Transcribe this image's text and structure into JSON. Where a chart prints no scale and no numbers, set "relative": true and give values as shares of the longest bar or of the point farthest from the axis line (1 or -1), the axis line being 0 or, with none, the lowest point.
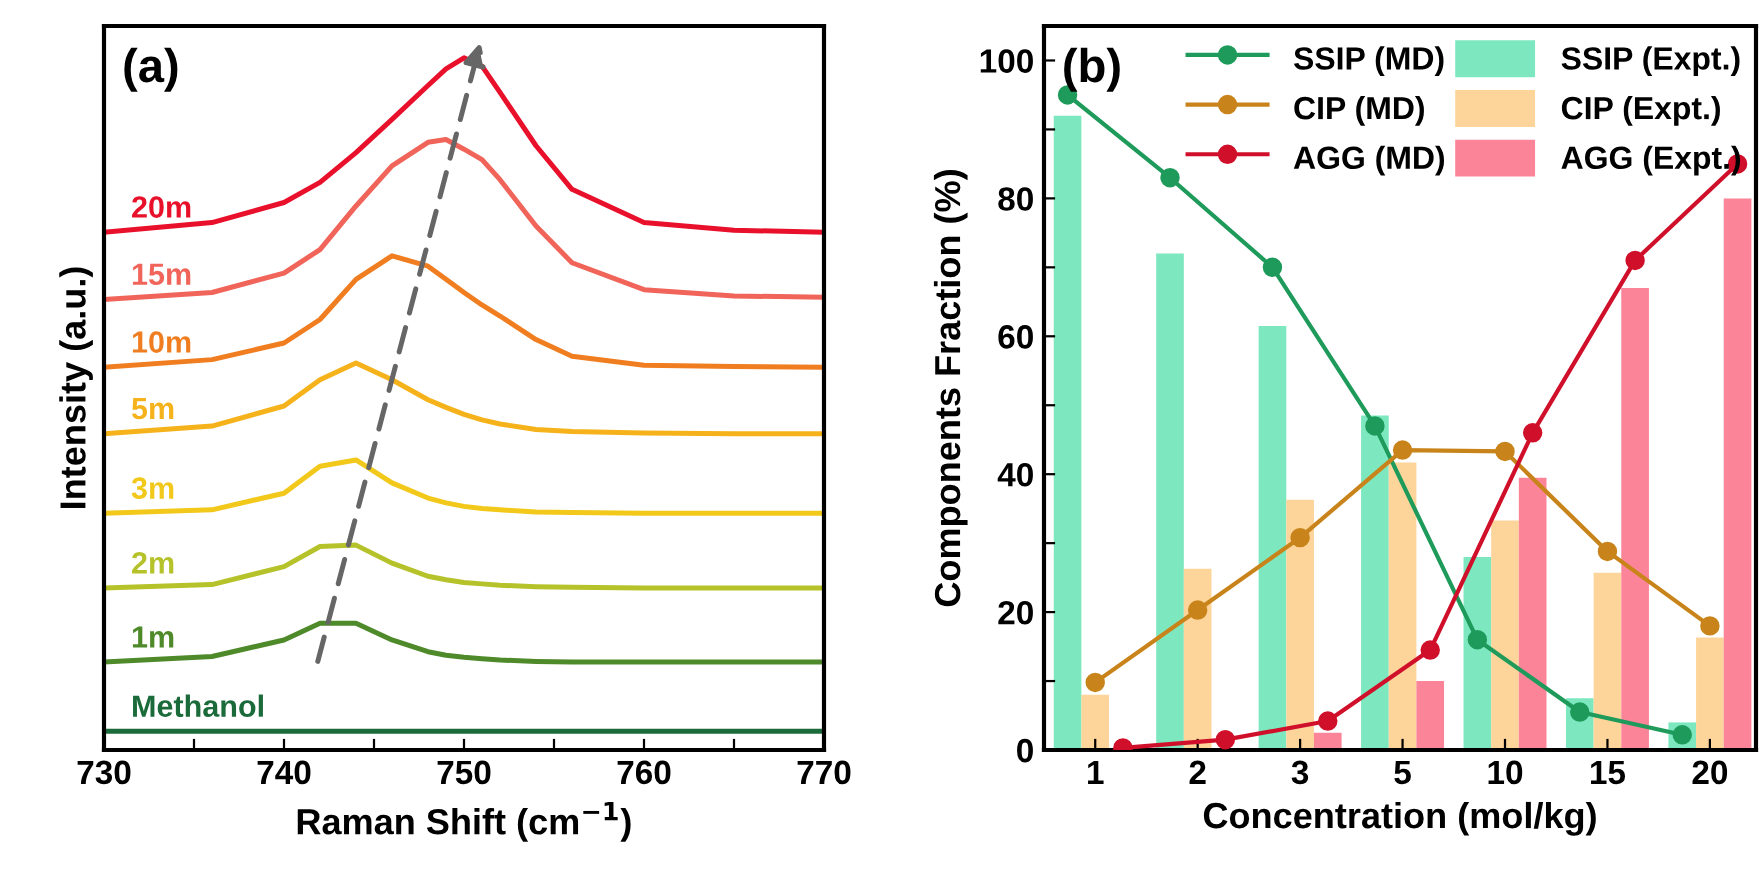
{
  "chart_data": [
    {
      "type": "line",
      "relative": true,
      "xlabel": "Raman Shift (cm$^{−1}$)",
      "ylabel": "Intensity (a.u.)",
      "annotations": [
        "(a)"
      ],
      "x": [
        730,
        736,
        740,
        742,
        744,
        746,
        748,
        749,
        750,
        751,
        752,
        754,
        756,
        760,
        765,
        770
      ],
      "xlim": [
        730,
        770
      ],
      "xticks": [
        730,
        {
          "value": 735,
          "label": null
        },
        740,
        {
          "value": 745,
          "label": null
        },
        750,
        {
          "value": 755,
          "label": null
        },
        760,
        {
          "value": 765,
          "label": null
        },
        770
      ],
      "tick_labels": "x",
      "grid": false,
      "legend": false,
      "marker": "none",
      "line_style": "solid",
      "series": [
        {
          "name": "Methanol",
          "color": "#1a6a3a",
          "values": [
            0.027,
            0.027,
            0.027,
            0.027,
            0.027,
            0.027,
            0.027,
            0.027,
            0.027,
            0.027,
            0.027,
            0.027,
            0.027,
            0.027,
            0.027,
            0.027
          ]
        },
        {
          "name": "1m",
          "color": "#4e8a2a",
          "values": [
            0.127,
            0.135,
            0.159,
            0.183,
            0.183,
            0.159,
            0.142,
            0.137,
            0.134,
            0.132,
            0.13,
            0.128,
            0.127,
            0.127,
            0.127,
            0.127
          ]
        },
        {
          "name": "2m",
          "color": "#b5c22a",
          "values": [
            0.234,
            0.239,
            0.265,
            0.294,
            0.296,
            0.27,
            0.251,
            0.246,
            0.242,
            0.24,
            0.238,
            0.236,
            0.235,
            0.234,
            0.234,
            0.234
          ]
        },
        {
          "name": "3m",
          "color": "#f2c81a",
          "values": [
            0.342,
            0.347,
            0.371,
            0.41,
            0.419,
            0.386,
            0.364,
            0.357,
            0.352,
            0.349,
            0.347,
            0.344,
            0.343,
            0.342,
            0.342,
            0.342
          ]
        },
        {
          "name": "5m",
          "color": "#f5b21a",
          "values": [
            0.457,
            0.468,
            0.497,
            0.535,
            0.559,
            0.535,
            0.506,
            0.495,
            0.485,
            0.477,
            0.471,
            0.463,
            0.46,
            0.458,
            0.457,
            0.457
          ]
        },
        {
          "name": "10m",
          "color": "#f07e20",
          "values": [
            0.553,
            0.564,
            0.588,
            0.622,
            0.68,
            0.714,
            0.699,
            0.68,
            0.661,
            0.643,
            0.627,
            0.593,
            0.569,
            0.556,
            0.554,
            0.553
          ]
        },
        {
          "name": "15m",
          "color": "#f0645a",
          "values": [
            0.651,
            0.661,
            0.689,
            0.723,
            0.786,
            0.844,
            0.878,
            0.882,
            0.868,
            0.853,
            0.824,
            0.757,
            0.704,
            0.665,
            0.656,
            0.654
          ]
        },
        {
          "name": "20m",
          "color": "#e8102a",
          "values": [
            0.748,
            0.762,
            0.791,
            0.82,
            0.863,
            0.911,
            0.96,
            0.984,
            1.0,
            0.988,
            0.95,
            0.873,
            0.81,
            0.762,
            0.751,
            0.748
          ]
        }
      ]
    },
    {
      "type": "bar",
      "xlabel": "Concentration (mol/kg)",
      "ylabel": "Components Fraction (%)",
      "annotations": [
        "(b)"
      ],
      "categories": [
        "1",
        "2",
        "3",
        "5",
        "10",
        "15",
        "20"
      ],
      "ylim": [
        0,
        105
      ],
      "yticks": [
        0,
        {
          "value": 10,
          "label": null
        },
        20,
        {
          "value": 30,
          "label": null
        },
        40,
        {
          "value": 50,
          "label": null
        },
        60,
        {
          "value": 70,
          "label": null
        },
        80,
        {
          "value": 90,
          "label": null
        },
        100
      ],
      "grid": false,
      "legend": "top right",
      "series": [
        {
          "name": "SSIP (MD)",
          "type": "line",
          "marker": "circle",
          "color": "#1e9a5a",
          "values": [
            95,
            83,
            70,
            47,
            16,
            5.5,
            2.2
          ]
        },
        {
          "name": "CIP (MD)",
          "type": "line",
          "marker": "circle",
          "color": "#c8841a",
          "values": [
            9.8,
            20.3,
            30.8,
            43.5,
            43.3,
            28.8,
            18
          ]
        },
        {
          "name": "AGG (MD)",
          "type": "line",
          "marker": "circle",
          "color": "#d0102a",
          "values": [
            0.3,
            1.5,
            4.2,
            14.5,
            46,
            71,
            85
          ]
        },
        {
          "name": "SSIP (Expt.)",
          "type": "bar",
          "color": "#7de8c0",
          "values": [
            92,
            72,
            61.5,
            48.5,
            28,
            7.5,
            4
          ]
        },
        {
          "name": "CIP (Expt.)",
          "type": "bar",
          "color": "#fdd49a",
          "values": [
            8,
            26.3,
            36.3,
            41.7,
            33.3,
            25.7,
            16.3
          ]
        },
        {
          "name": "AGG (Expt.)",
          "type": "bar",
          "color": "#fb8498",
          "values": [
            null,
            null,
            2.5,
            10,
            39.5,
            67,
            80
          ]
        }
      ]
    }
  ]
}
